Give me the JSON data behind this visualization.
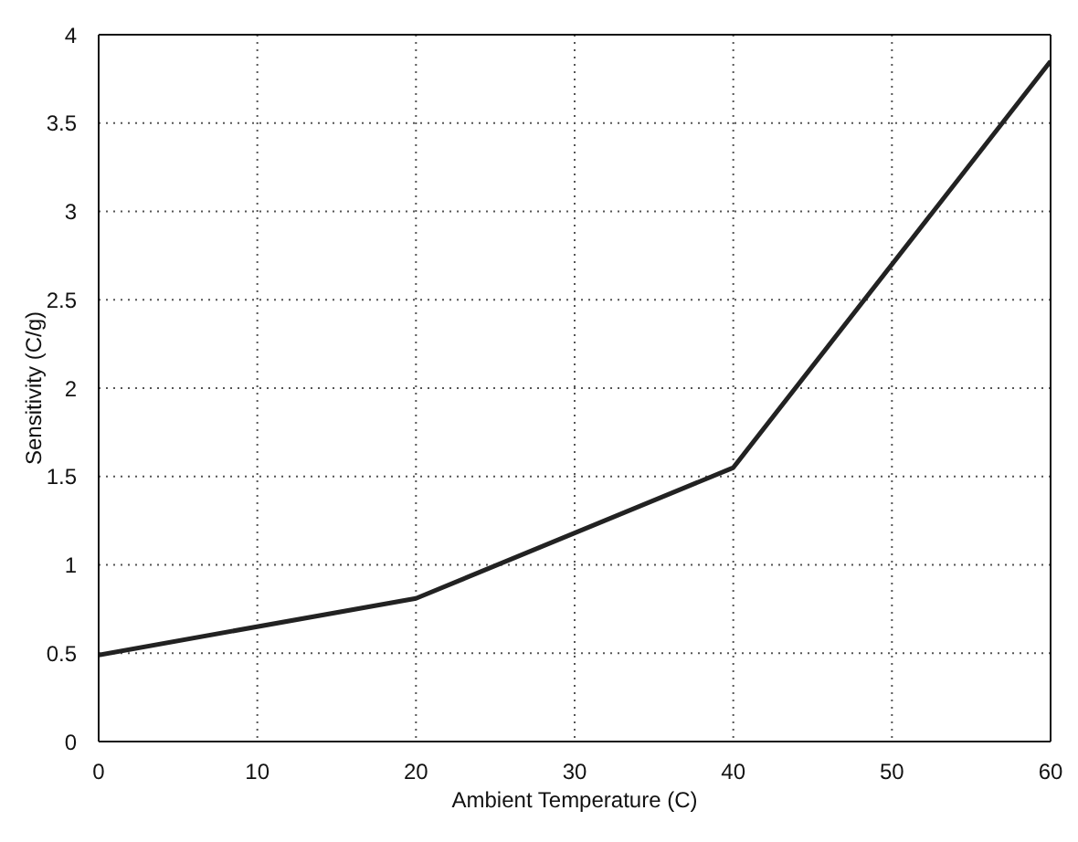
{
  "chart_data": {
    "type": "line",
    "xlabel": "Ambient Temperature (C)",
    "ylabel": "Sensitivity (C/g)",
    "x": [
      0,
      20,
      40,
      60
    ],
    "series": [
      {
        "color": "#222222",
        "values": [
          0.49,
          0.81,
          1.55,
          3.85
        ]
      }
    ],
    "xlim": [
      0,
      60
    ],
    "xticks": [
      0,
      10,
      20,
      30,
      40,
      50,
      60
    ],
    "ylim": [
      0,
      4
    ],
    "yticks": [
      0,
      0.5,
      1,
      1.5,
      2,
      2.5,
      3,
      3.5,
      4
    ],
    "grid": true,
    "marker": "none",
    "line_style": "solid",
    "legend": false
  }
}
